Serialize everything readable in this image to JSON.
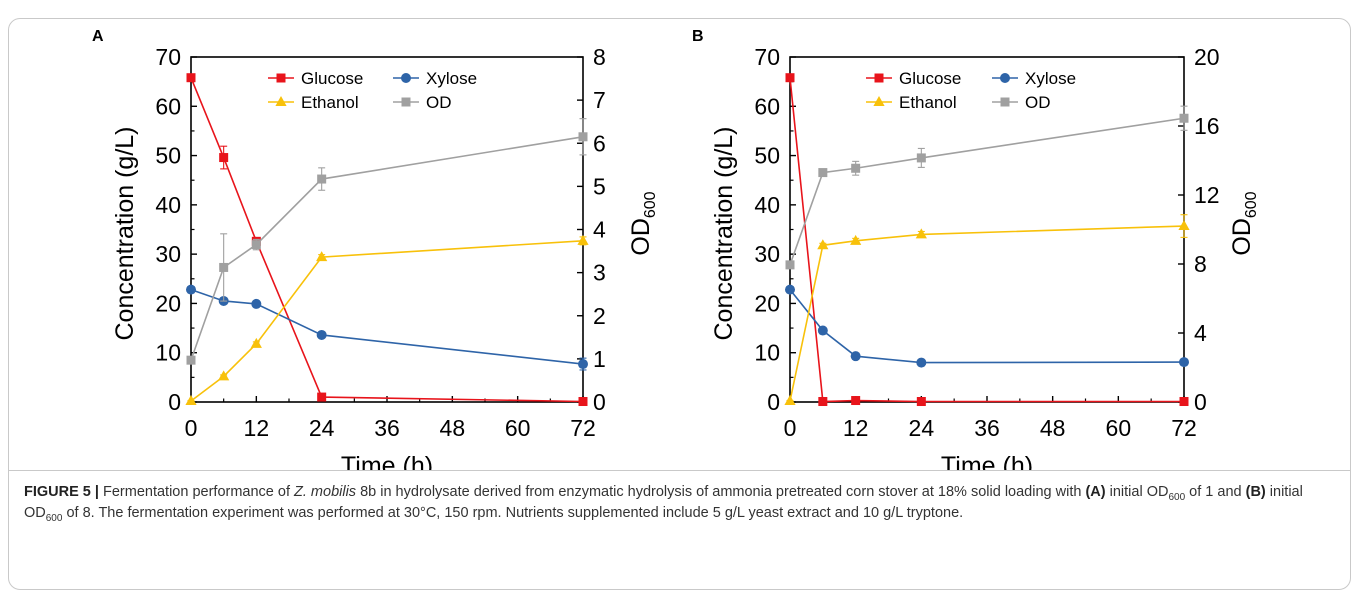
{
  "figure": {
    "caption": {
      "label": "FIGURE 5 |",
      "seg1": " Fermentation performance of ",
      "species": "Z. mobilis",
      "seg2": " 8b in hydrolysate derived from enzymatic hydrolysis of ammonia pretreated corn stover at 18% solid loading with ",
      "a_label": "(A)",
      "seg3": " initial OD",
      "sub1": "600",
      "seg4": " of 1 and ",
      "b_label": "(B)",
      "seg5": " initial OD",
      "sub2": "600",
      "seg6": " of 8. The fermentation experiment was performed at 30°C, 150 rpm. Nutrients supplemented include 5 g/L yeast extract and 10 g/L tryptone."
    }
  },
  "chart_data": [
    {
      "panel": "A",
      "type": "line",
      "xlabel": "Time (h)",
      "ylabel": "Concentration (g/L)",
      "y2label": "OD",
      "y2label_sub": "600",
      "xticks": [
        0,
        12,
        24,
        36,
        48,
        60,
        72
      ],
      "xlim": [
        0,
        72
      ],
      "ylim": [
        0,
        70
      ],
      "yticks": [
        0,
        10,
        20,
        30,
        40,
        50,
        60,
        70
      ],
      "y2lim": [
        0,
        8
      ],
      "y2ticks": [
        0,
        1,
        2,
        3,
        4,
        5,
        6,
        7,
        8
      ],
      "legend": [
        [
          "Glucose",
          "Xylose"
        ],
        [
          "Ethanol",
          "OD"
        ]
      ],
      "series": [
        {
          "name": "Glucose",
          "axis": "left",
          "color": "#e8141b",
          "marker": "square",
          "x": [
            0,
            6,
            12,
            24,
            72
          ],
          "y": [
            65.8,
            49.6,
            32.6,
            1.0,
            0.1
          ],
          "err": [
            0.5,
            2.3,
            0.6,
            0.2,
            0.1
          ]
        },
        {
          "name": "Xylose",
          "axis": "left",
          "color": "#2e64a8",
          "marker": "circle",
          "x": [
            0,
            6,
            12,
            24,
            72
          ],
          "y": [
            22.8,
            20.5,
            19.9,
            13.6,
            7.7
          ],
          "err": [
            0.5,
            0.6,
            0.4,
            0.4,
            1.2
          ]
        },
        {
          "name": "Ethanol",
          "axis": "left",
          "color": "#f8c10a",
          "marker": "triangle",
          "x": [
            0,
            6,
            12,
            24,
            72
          ],
          "y": [
            0.2,
            5.2,
            11.8,
            29.4,
            32.7
          ],
          "err": [
            0.1,
            0.3,
            0.4,
            0.5,
            0.8
          ]
        },
        {
          "name": "OD",
          "axis": "right",
          "color": "#a0a0a0",
          "marker": "square",
          "x": [
            0,
            6,
            12,
            24,
            72
          ],
          "y": [
            0.97,
            3.12,
            3.65,
            5.17,
            6.15
          ],
          "err": [
            0.06,
            0.78,
            0.12,
            0.26,
            0.42
          ]
        }
      ]
    },
    {
      "panel": "B",
      "type": "line",
      "xlabel": "Time (h)",
      "ylabel": "Concentration (g/L)",
      "y2label": "OD",
      "y2label_sub": "600",
      "xticks": [
        0,
        12,
        24,
        36,
        48,
        60,
        72
      ],
      "xlim": [
        0,
        72
      ],
      "ylim": [
        0,
        70
      ],
      "yticks": [
        0,
        10,
        20,
        30,
        40,
        50,
        60,
        70
      ],
      "y2lim": [
        0,
        20
      ],
      "y2ticks": [
        0,
        4,
        8,
        12,
        16,
        20
      ],
      "legend": [
        [
          "Glucose",
          "Xylose"
        ],
        [
          "Ethanol",
          "OD"
        ]
      ],
      "series": [
        {
          "name": "Glucose",
          "axis": "left",
          "color": "#e8141b",
          "marker": "square",
          "x": [
            0,
            6,
            12,
            24,
            72
          ],
          "y": [
            65.8,
            0.1,
            0.3,
            0.1,
            0.1
          ],
          "err": [
            0.4,
            0.1,
            0.1,
            0.1,
            0.1
          ]
        },
        {
          "name": "Xylose",
          "axis": "left",
          "color": "#2e64a8",
          "marker": "circle",
          "x": [
            0,
            6,
            12,
            24,
            72
          ],
          "y": [
            22.8,
            14.5,
            9.3,
            8.0,
            8.1
          ],
          "err": [
            0.4,
            0.4,
            0.3,
            0.3,
            0.3
          ]
        },
        {
          "name": "Ethanol",
          "axis": "left",
          "color": "#f8c10a",
          "marker": "triangle",
          "x": [
            0,
            6,
            12,
            24,
            72
          ],
          "y": [
            0.2,
            31.8,
            32.7,
            34.0,
            35.7
          ],
          "err": [
            0.1,
            0.4,
            0.5,
            0.6,
            2.3
          ]
        },
        {
          "name": "OD",
          "axis": "right",
          "color": "#a0a0a0",
          "marker": "square",
          "x": [
            0,
            6,
            12,
            24,
            72
          ],
          "y": [
            7.95,
            13.3,
            13.55,
            14.15,
            16.45
          ],
          "err": [
            0.1,
            0.2,
            0.4,
            0.55,
            0.7
          ]
        }
      ]
    }
  ]
}
